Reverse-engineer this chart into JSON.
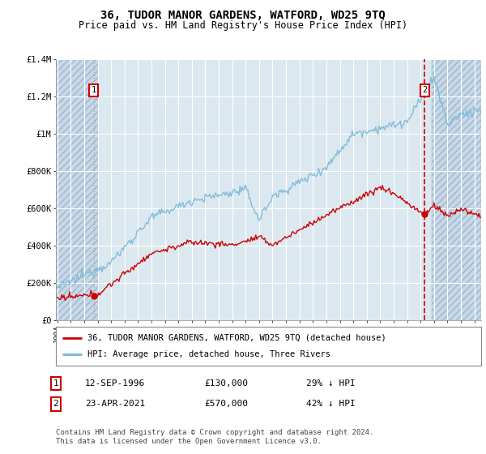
{
  "title": "36, TUDOR MANOR GARDENS, WATFORD, WD25 9TQ",
  "subtitle": "Price paid vs. HM Land Registry's House Price Index (HPI)",
  "legend_line1": "36, TUDOR MANOR GARDENS, WATFORD, WD25 9TQ (detached house)",
  "legend_line2": "HPI: Average price, detached house, Three Rivers",
  "annotation1": {
    "num": "1",
    "date": "12-SEP-1996",
    "price": "£130,000",
    "note": "29% ↓ HPI"
  },
  "annotation2": {
    "num": "2",
    "date": "23-APR-2021",
    "price": "£570,000",
    "note": "42% ↓ HPI"
  },
  "footer": "Contains HM Land Registry data © Crown copyright and database right 2024.\nThis data is licensed under the Open Government Licence v3.0.",
  "sale1_year": 1996.71,
  "sale1_price": 130000,
  "sale2_year": 2021.31,
  "sale2_price": 570000,
  "hpi_color": "#7ab8d9",
  "price_color": "#cc0000",
  "marker_color": "#cc0000",
  "sale1_vline_color": "#aaaaaa",
  "sale2_vline_color": "#cc0000",
  "hatch_color": "#c8d8e8",
  "bg_color": "#dce8f0",
  "plot_bg": "#dce8f0",
  "ylim": [
    0,
    1400000
  ],
  "xlim_start": 1993.9,
  "xlim_end": 2025.5
}
